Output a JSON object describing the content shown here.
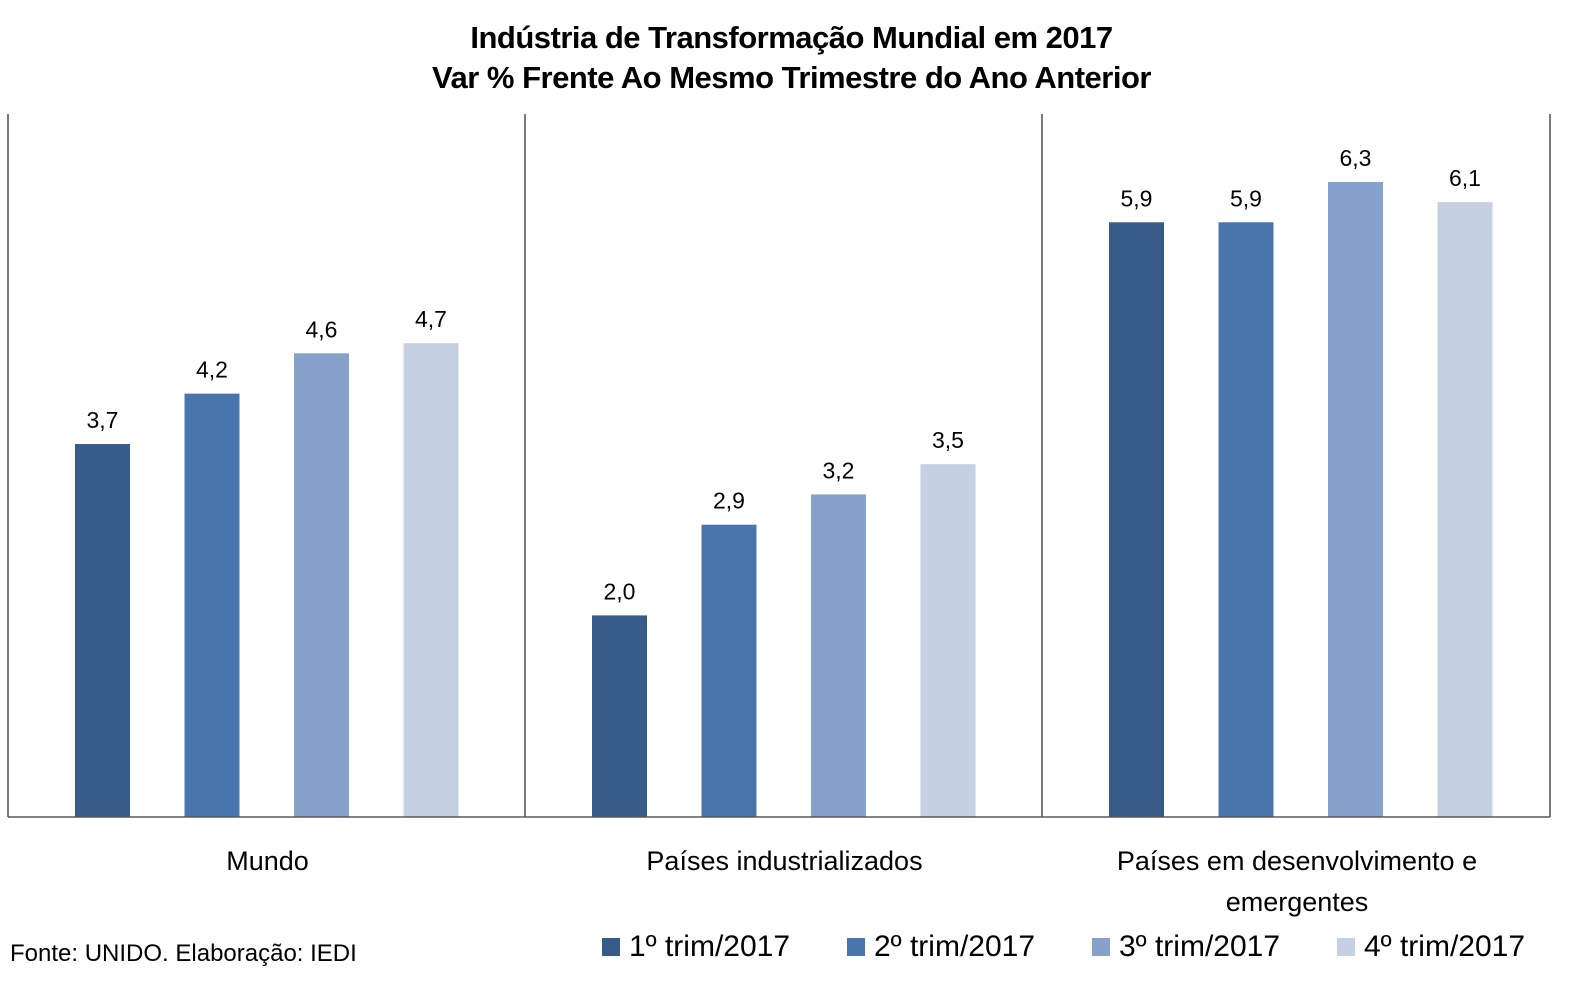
{
  "chart_data": {
    "type": "bar",
    "title": "Indústria de Transformação Mundial em 2017",
    "subtitle": "Var % Frente Ao Mesmo Trimestre do Ano Anterior",
    "xlabel": "",
    "ylabel": "",
    "ylim": [
      0,
      7
    ],
    "grid": false,
    "legend_position": "bottom",
    "categories": [
      "Mundo",
      "Países industrializados",
      "Países em desenvolvimento e emergentes"
    ],
    "category_lines": [
      [
        "Mundo"
      ],
      [
        "Países industrializados"
      ],
      [
        "Países em desenvolvimento e",
        "emergentes"
      ]
    ],
    "series": [
      {
        "name": "1º trim/2017",
        "color": "#365C87",
        "values": [
          3.7,
          2.0,
          5.9
        ],
        "labels": [
          "3,7",
          "2,0",
          "5,9"
        ]
      },
      {
        "name": "2º trim/2017",
        "color": "#4875AB",
        "values": [
          4.2,
          2.9,
          5.9
        ],
        "labels": [
          "4,2",
          "2,9",
          "5,9"
        ]
      },
      {
        "name": "3º trim/2017",
        "color": "#86A1CA",
        "values": [
          4.6,
          3.2,
          6.3
        ],
        "labels": [
          "4,6",
          "3,2",
          "6,3"
        ]
      },
      {
        "name": "4º trim/2017",
        "color": "#C5D0E2",
        "values": [
          4.7,
          3.5,
          6.1
        ],
        "labels": [
          "4,7",
          "3,5",
          "6,1"
        ]
      }
    ]
  },
  "source": "Fonte: UNIDO. Elaboração: IEDI"
}
